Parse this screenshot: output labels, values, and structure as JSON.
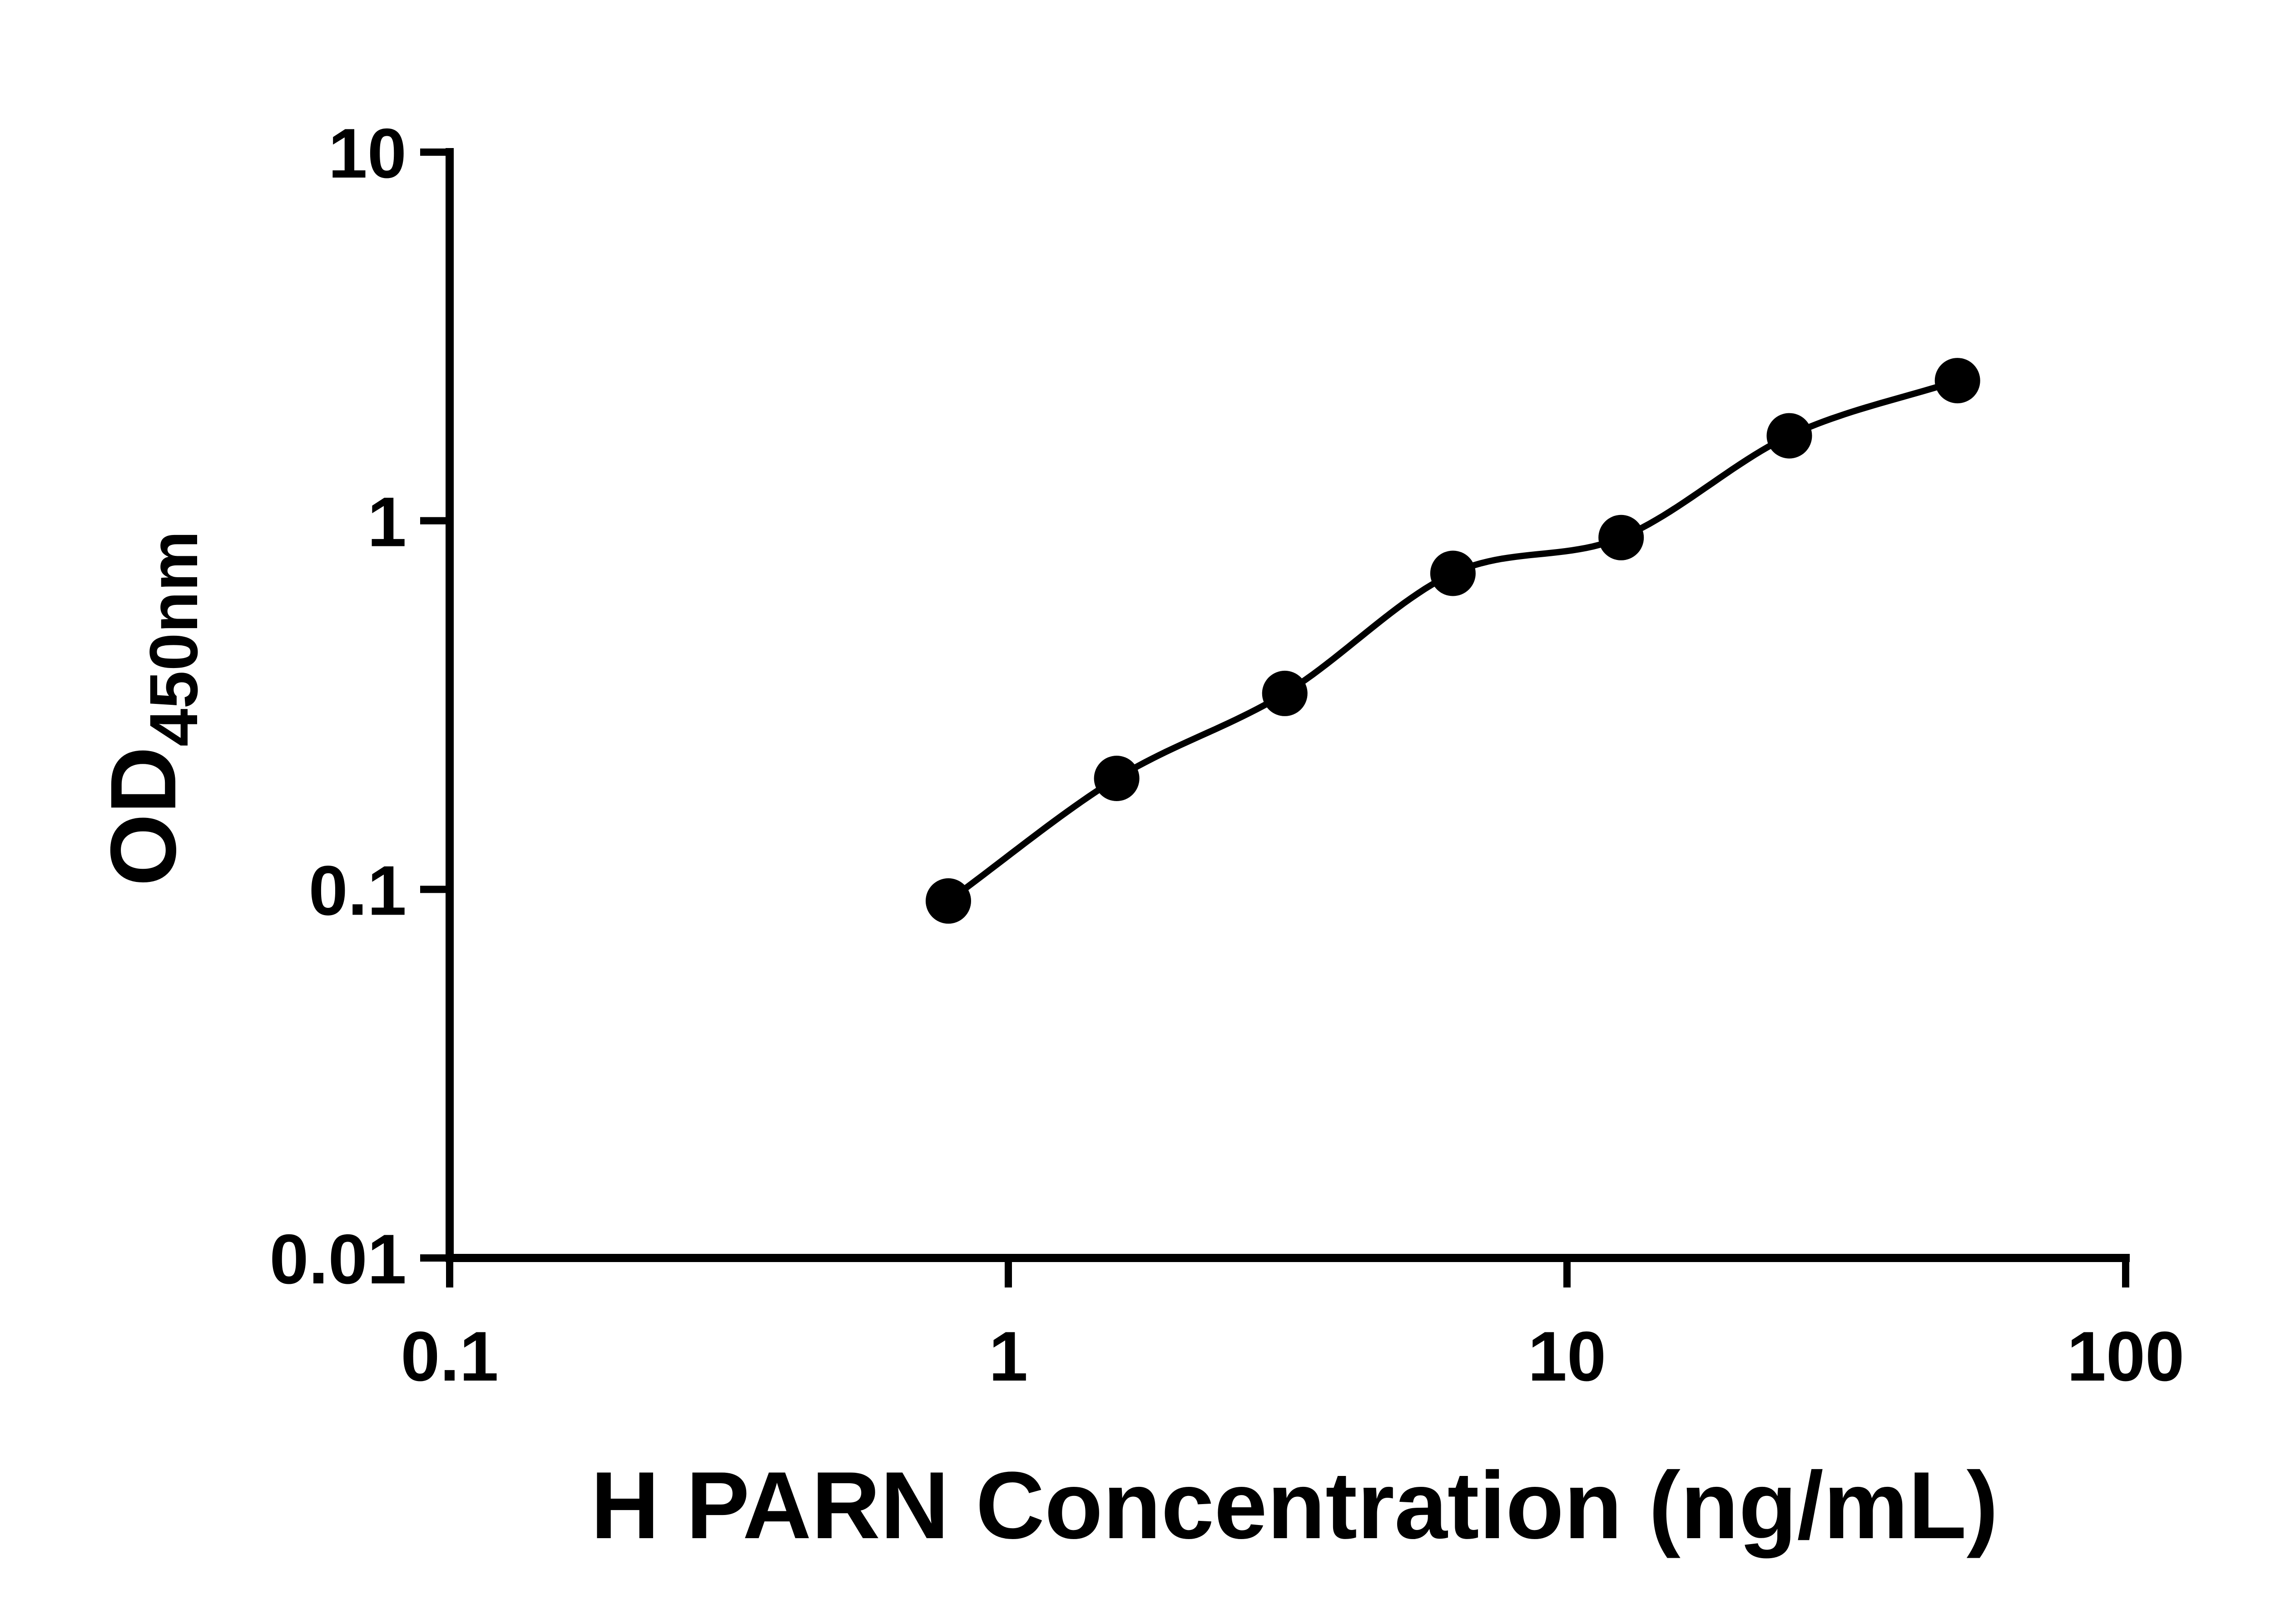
{
  "chart_data": {
    "type": "scatter",
    "subtype": "log-log ELISA standard curve with fitted line",
    "title": "",
    "xlabel": "H PARN Concentration (ng/mL)",
    "ylabel": "OD450nm",
    "ylabel_main": "OD",
    "ylabel_sub": "450nm",
    "x_scale": "log10",
    "y_scale": "log10",
    "xlim": [
      0.1,
      100
    ],
    "ylim": [
      0.01,
      10
    ],
    "x_ticks": {
      "values": [
        0.1,
        1,
        10,
        100
      ],
      "labels": [
        "0.1",
        "1",
        "10",
        "100"
      ]
    },
    "y_ticks": {
      "values": [
        0.01,
        0.1,
        1,
        10
      ],
      "labels": [
        "0.01",
        "0.1",
        "1",
        "10"
      ]
    },
    "grid": false,
    "legend": false,
    "series": [
      {
        "x": [
          0.781,
          1.563,
          3.125,
          6.25,
          12.5,
          25,
          50
        ],
        "y": [
          0.093,
          0.2,
          0.34,
          0.72,
          0.9,
          1.7,
          2.4
        ],
        "marker": "circle",
        "marker_color": "#000000",
        "line": "smooth-fit",
        "line_color": "#000000"
      }
    ],
    "colors": {
      "axis": "#000000",
      "text": "#000000",
      "background": "#ffffff"
    }
  }
}
